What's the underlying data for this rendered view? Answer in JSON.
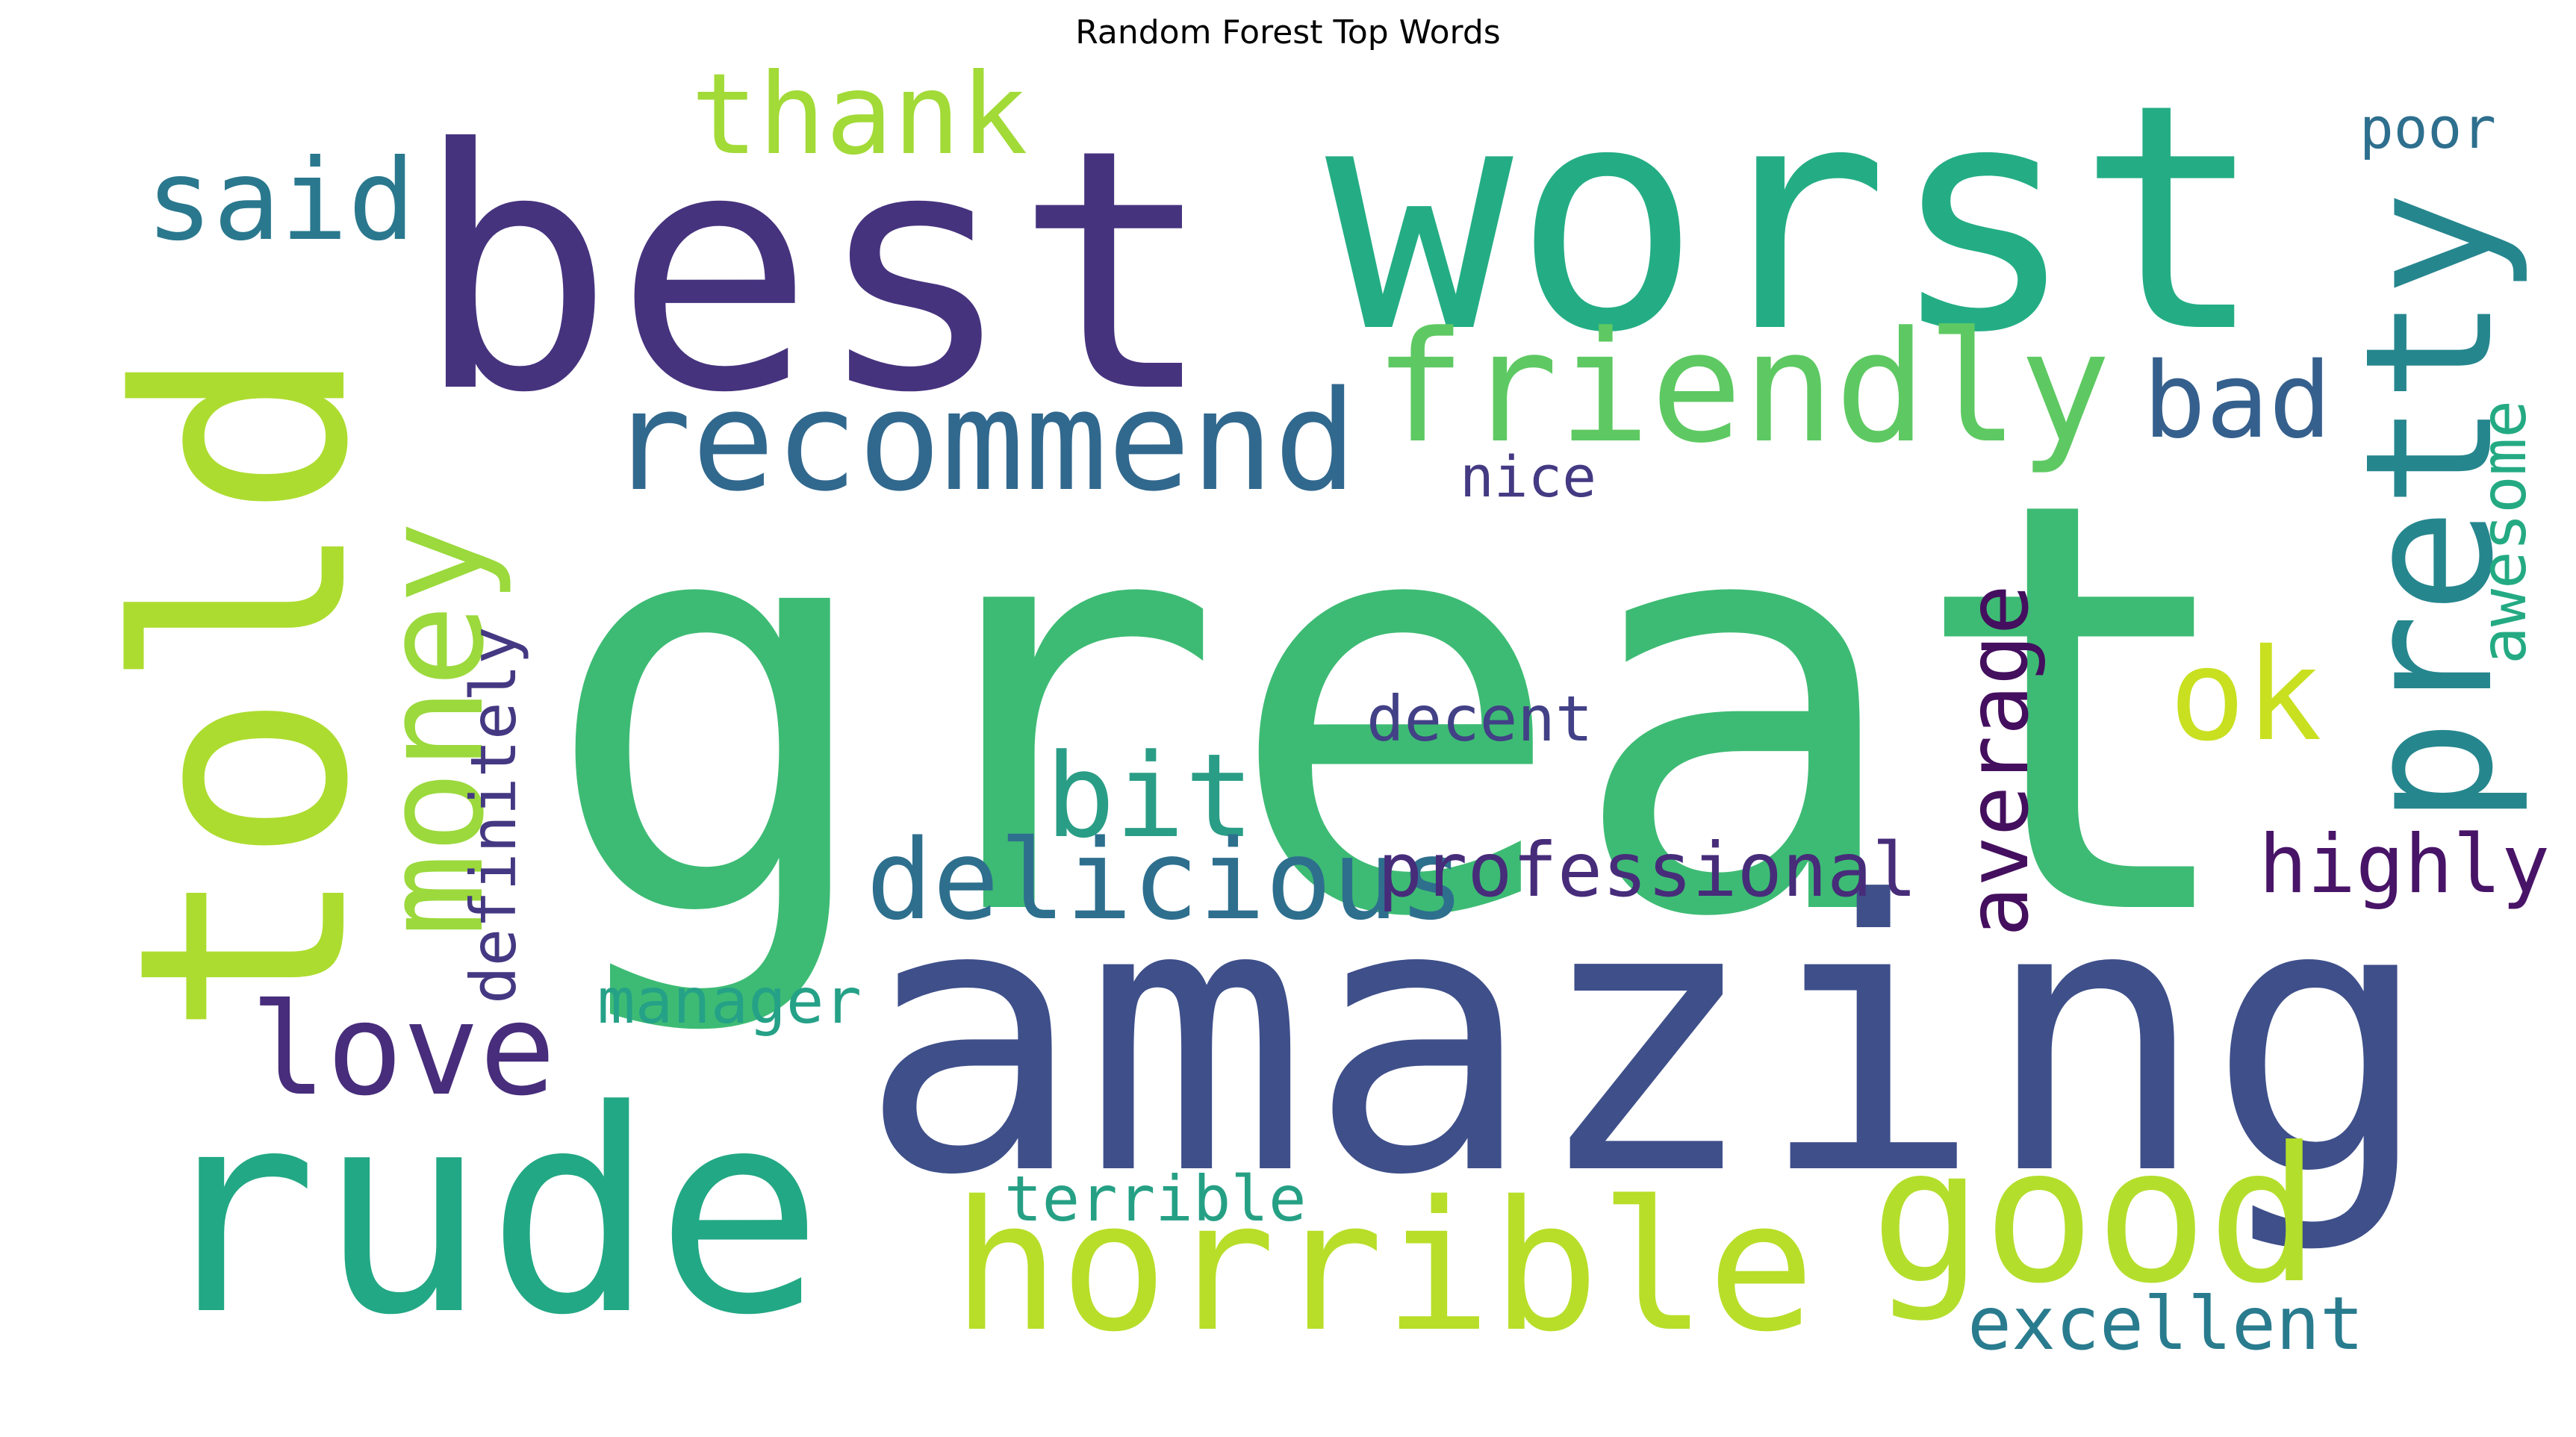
{
  "chart_data": {
    "type": "wordcloud",
    "title": "Random Forest Top Words",
    "words": [
      {
        "text": "great",
        "weight": 100,
        "color": "#3dbb74",
        "rotated": false
      },
      {
        "text": "amazing",
        "weight": 71,
        "color": "#3e4f8a",
        "rotated": false
      },
      {
        "text": "best",
        "weight": 63,
        "color": "#46337e",
        "rotated": false
      },
      {
        "text": "worst",
        "weight": 59,
        "color": "#24ad84",
        "rotated": false
      },
      {
        "text": "told",
        "weight": 54,
        "color": "#addc30",
        "rotated": true
      },
      {
        "text": "rude",
        "weight": 53,
        "color": "#22a884",
        "rotated": false
      },
      {
        "text": "good",
        "weight": 35,
        "color": "#b4de2c",
        "rotated": false
      },
      {
        "text": "horrible",
        "weight": 34,
        "color": "#b8de29",
        "rotated": false
      },
      {
        "text": "pretty",
        "weight": 33,
        "color": "#26868e",
        "rotated": true
      },
      {
        "text": "friendly",
        "weight": 29,
        "color": "#5ec962",
        "rotated": false
      },
      {
        "text": "recommend",
        "weight": 26,
        "color": "#31688e",
        "rotated": false
      },
      {
        "text": "money",
        "weight": 26,
        "color": "#9bd93c",
        "rotated": true
      },
      {
        "text": "love",
        "weight": 24,
        "color": "#472d7b",
        "rotated": false
      },
      {
        "text": "ok",
        "weight": 24,
        "color": "#c8e020",
        "rotated": false
      },
      {
        "text": "bit",
        "weight": 22,
        "color": "#2a9d86",
        "rotated": false
      },
      {
        "text": "thank",
        "weight": 21,
        "color": "#a2da37",
        "rotated": false
      },
      {
        "text": "said",
        "weight": 21,
        "color": "#2a788e",
        "rotated": false
      },
      {
        "text": "delicious",
        "weight": 21,
        "color": "#2e6f8e",
        "rotated": false
      },
      {
        "text": "bad",
        "weight": 20,
        "color": "#35608d",
        "rotated": false
      },
      {
        "text": "average",
        "weight": 16,
        "color": "#440f5e",
        "rotated": true
      },
      {
        "text": "highly",
        "weight": 15,
        "color": "#481467",
        "rotated": false
      },
      {
        "text": "professional",
        "weight": 14,
        "color": "#472c7a",
        "rotated": false
      },
      {
        "text": "excellent",
        "weight": 14,
        "color": "#297b8e",
        "rotated": false
      },
      {
        "text": "definitely",
        "weight": 12,
        "color": "#453882",
        "rotated": true
      },
      {
        "text": "terrible",
        "weight": 12,
        "color": "#26a085",
        "rotated": false
      },
      {
        "text": "manager",
        "weight": 12,
        "color": "#25a187",
        "rotated": false
      },
      {
        "text": "decent",
        "weight": 12,
        "color": "#424086",
        "rotated": false
      },
      {
        "text": "awesome",
        "weight": 12,
        "color": "#24aa83",
        "rotated": true
      },
      {
        "text": "nice",
        "weight": 11,
        "color": "#443a83",
        "rotated": false
      },
      {
        "text": "poor",
        "weight": 11,
        "color": "#2e6f8e",
        "rotated": false
      }
    ]
  }
}
